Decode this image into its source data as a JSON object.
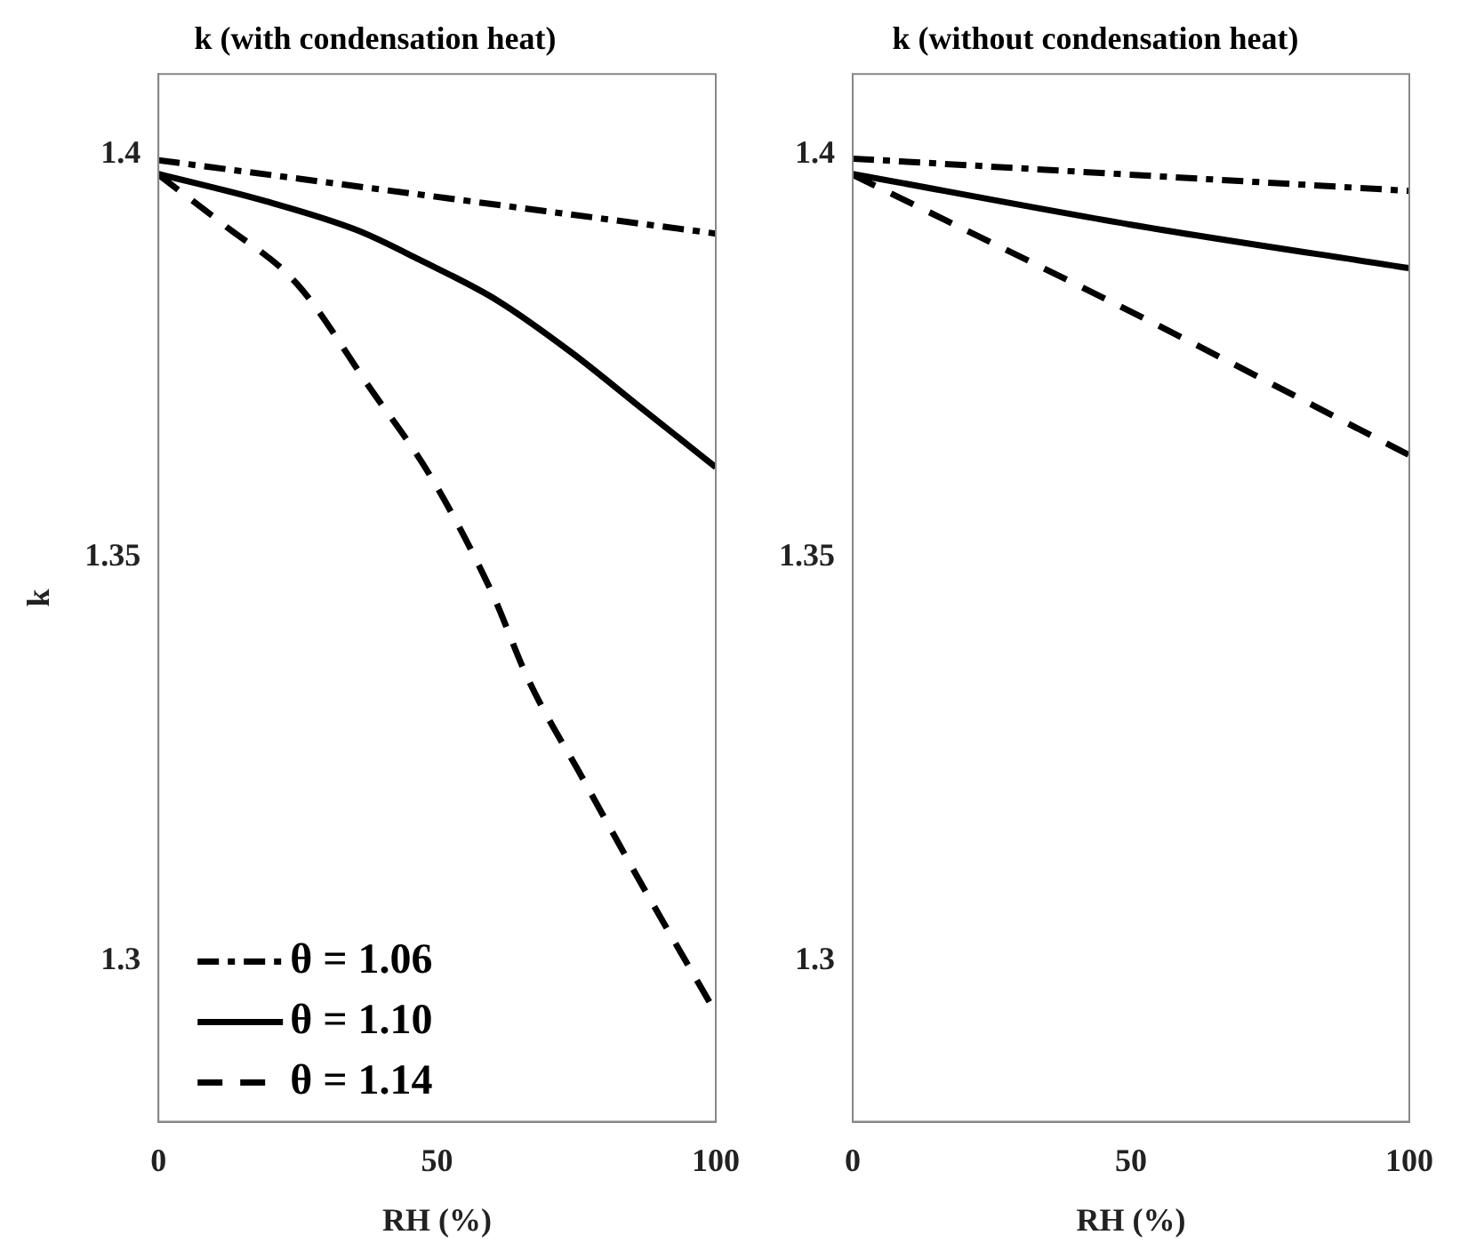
{
  "chart_data": [
    {
      "type": "line",
      "title": "k (with condensation heat)",
      "xlabel": "RH (%)",
      "ylabel": "k",
      "xlim": [
        0,
        100
      ],
      "xticks": [
        0,
        50,
        100
      ],
      "ylim": [
        1.28,
        1.41
      ],
      "yticks": [
        1.3,
        1.35,
        1.4
      ],
      "grid": false,
      "legend": "bottom left",
      "marker": "none",
      "series": [
        {
          "name": "θ = 1.06",
          "color": "#000000",
          "line_style": "dashdot",
          "x": [
            0,
            100
          ],
          "values": [
            1.3993,
            1.3902
          ]
        },
        {
          "name": "θ = 1.10",
          "color": "#000000",
          "line_style": "solid",
          "x": [
            0,
            19.3,
            35.7,
            46.7,
            60.8,
            74.2,
            86.2,
            100
          ],
          "values": [
            1.3976,
            1.3942,
            1.3906,
            1.387,
            1.3819,
            1.3754,
            1.3688,
            1.3612
          ]
        },
        {
          "name": "θ = 1.14",
          "color": "#000000",
          "line_style": "dashed",
          "x": [
            0,
            11.7,
            24.8,
            38,
            48.9,
            59.8,
            66.4,
            76.2,
            86,
            100
          ],
          "values": [
            1.3975,
            1.3913,
            1.384,
            1.371,
            1.36,
            1.3457,
            1.3348,
            1.3225,
            1.3103,
            1.2935
          ]
        }
      ]
    },
    {
      "type": "line",
      "title": "k (without condensation heat)",
      "xlabel": "RH (%)",
      "xlim": [
        0,
        100
      ],
      "xticks": [
        0,
        50,
        100
      ],
      "ylim": [
        1.28,
        1.41
      ],
      "yticks": [
        1.3,
        1.35,
        1.4
      ],
      "grid": false,
      "marker": "none",
      "series": [
        {
          "color": "#000000",
          "line_style": "dashdot",
          "x": [
            0,
            100
          ],
          "values": [
            1.3995,
            1.3955
          ]
        },
        {
          "color": "#000000",
          "line_style": "solid",
          "x": [
            0,
            50,
            100
          ],
          "values": [
            1.3976,
            1.3913,
            1.3859
          ]
        },
        {
          "color": "#000000",
          "line_style": "dashed",
          "x": [
            0,
            50,
            100
          ],
          "values": [
            1.3975,
            1.3805,
            1.3627
          ]
        }
      ]
    }
  ]
}
